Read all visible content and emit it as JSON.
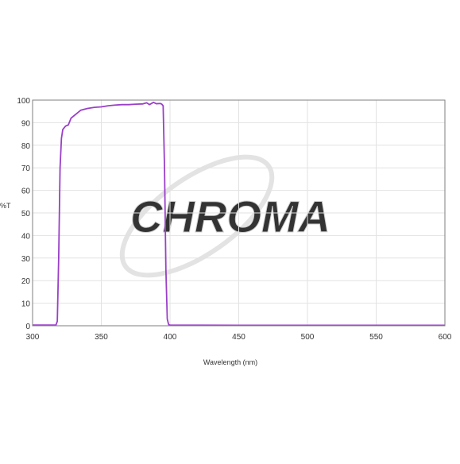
{
  "chart_data": {
    "type": "line",
    "title": "",
    "xlabel": "Wavelength (nm)",
    "ylabel": "%T",
    "xlim": [
      300,
      600
    ],
    "ylim": [
      0,
      100
    ],
    "x_ticks": [
      300,
      350,
      400,
      450,
      500,
      550,
      600
    ],
    "y_ticks": [
      0,
      10,
      20,
      30,
      40,
      50,
      60,
      70,
      80,
      90,
      100
    ],
    "grid": true,
    "legend": "none",
    "series": [
      {
        "color": "#9a3fc8",
        "points": [
          [
            300,
            0.3
          ],
          [
            317,
            0.3
          ],
          [
            318,
            2
          ],
          [
            319,
            30
          ],
          [
            320,
            70
          ],
          [
            321,
            83
          ],
          [
            322,
            87
          ],
          [
            324,
            88.5
          ],
          [
            326,
            89
          ],
          [
            328,
            92
          ],
          [
            330,
            93
          ],
          [
            332,
            94
          ],
          [
            335,
            95.5
          ],
          [
            338,
            96
          ],
          [
            340,
            96.3
          ],
          [
            345,
            96.8
          ],
          [
            350,
            97
          ],
          [
            355,
            97.5
          ],
          [
            360,
            97.8
          ],
          [
            365,
            98
          ],
          [
            370,
            98
          ],
          [
            375,
            98.2
          ],
          [
            380,
            98.3
          ],
          [
            383,
            98.8
          ],
          [
            385,
            98
          ],
          [
            388,
            99
          ],
          [
            390,
            98.4
          ],
          [
            393,
            98.5
          ],
          [
            394,
            98.2
          ],
          [
            395,
            97.5
          ],
          [
            396,
            70
          ],
          [
            397,
            25
          ],
          [
            398,
            3
          ],
          [
            399,
            0.5
          ],
          [
            400,
            0.3
          ],
          [
            450,
            0.2
          ],
          [
            500,
            0.2
          ],
          [
            550,
            0.2
          ],
          [
            600,
            0.2
          ]
        ]
      }
    ]
  },
  "watermark": {
    "text": "CHROMA",
    "color": "#d9d9d9"
  }
}
